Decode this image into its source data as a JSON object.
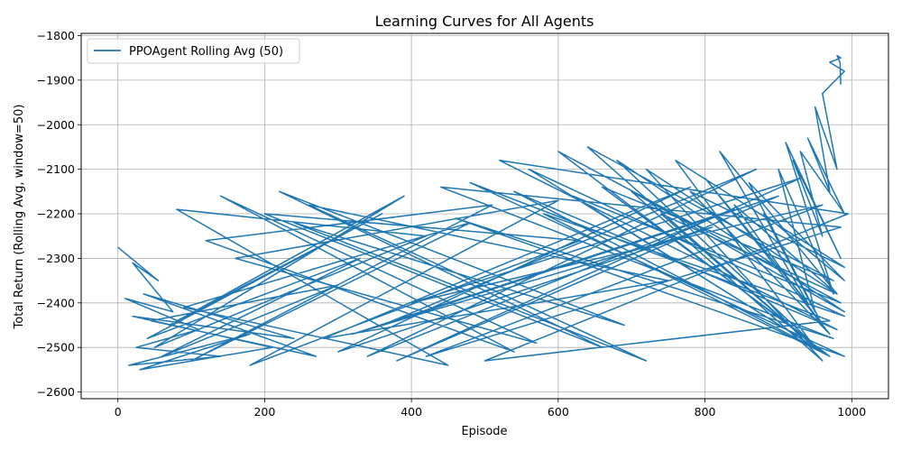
{
  "chart_data": {
    "type": "line",
    "title": "Learning Curves for All Agents",
    "xlabel": "Episode",
    "ylabel": "Total Return (Rolling Avg, window=50)",
    "xlim": [
      -50,
      1050
    ],
    "ylim": [
      -2615,
      -1795
    ],
    "xticks": [
      0,
      200,
      400,
      600,
      800,
      1000
    ],
    "yticks": [
      -2600,
      -2500,
      -2400,
      -2300,
      -2200,
      -2100,
      -2000,
      -1900,
      -1800
    ],
    "grid": true,
    "legend_position": "top-left",
    "series": [
      {
        "name": "PPOAgent Rolling Avg (50)",
        "color": "#1f77b4",
        "x": [
          0,
          55,
          20,
          75,
          10,
          110,
          25,
          140,
          15,
          180,
          30,
          210,
          20,
          240,
          35,
          270,
          45,
          300,
          60,
          330,
          40,
          360,
          70,
          390,
          50,
          420,
          80,
          450,
          90,
          480,
          100,
          510,
          120,
          540,
          140,
          570,
          160,
          600,
          180,
          630,
          200,
          660,
          220,
          690,
          240,
          720,
          260,
          750,
          280,
          780,
          300,
          810,
          320,
          840,
          340,
          870,
          360,
          900,
          380,
          930,
          400,
          960,
          420,
          985,
          440,
          975,
          460,
          990,
          480,
          970,
          500,
          995,
          520,
          980,
          540,
          960,
          560,
          990,
          580,
          970,
          600,
          985,
          620,
          950,
          640,
          975,
          660,
          940,
          680,
          990,
          700,
          960,
          720,
          980,
          740,
          950,
          760,
          990,
          780,
          970,
          800,
          940,
          820,
          980,
          840,
          960,
          860,
          990,
          880,
          950,
          900,
          975,
          910,
          985,
          920,
          960,
          930,
          990,
          940,
          970,
          950,
          980,
          960,
          990,
          970,
          985,
          980,
          984,
          985
        ],
        "y": [
          -2275,
          -2350,
          -2310,
          -2420,
          -2390,
          -2460,
          -2500,
          -2520,
          -2540,
          -2470,
          -2550,
          -2500,
          -2430,
          -2480,
          -2380,
          -2520,
          -2440,
          -2360,
          -2520,
          -2300,
          -2480,
          -2200,
          -2450,
          -2160,
          -2500,
          -2250,
          -2190,
          -2540,
          -2410,
          -2220,
          -2530,
          -2180,
          -2260,
          -2510,
          -2160,
          -2490,
          -2300,
          -2170,
          -2540,
          -2260,
          -2200,
          -2500,
          -2150,
          -2450,
          -2220,
          -2530,
          -2180,
          -2350,
          -2480,
          -2140,
          -2510,
          -2230,
          -2470,
          -2190,
          -2520,
          -2100,
          -2450,
          -2160,
          -2530,
          -2120,
          -2400,
          -2180,
          -2520,
          -2230,
          -2140,
          -2480,
          -2210,
          -2520,
          -2130,
          -2440,
          -2530,
          -2200,
          -2080,
          -2460,
          -2150,
          -2510,
          -2100,
          -2430,
          -2200,
          -2520,
          -2060,
          -2400,
          -2160,
          -2500,
          -2050,
          -2350,
          -2140,
          -2480,
          -2080,
          -2420,
          -2150,
          -2530,
          -2100,
          -2380,
          -2200,
          -2500,
          -2080,
          -2320,
          -2150,
          -2470,
          -2120,
          -2400,
          -2060,
          -2380,
          -2180,
          -2450,
          -2130,
          -2350,
          -2200,
          -2420,
          -2100,
          -2380,
          -2040,
          -2300,
          -2080,
          -2250,
          -2060,
          -2200,
          -2030,
          -2150,
          -1960,
          -2100,
          -1930,
          -1880,
          -1860,
          -1850,
          -1845,
          -1860,
          -1910
        ]
      }
    ]
  }
}
